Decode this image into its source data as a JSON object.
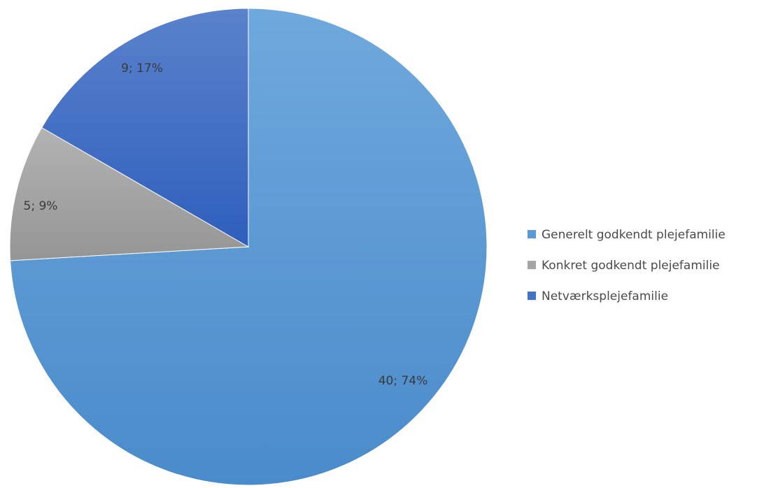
{
  "chart_data": {
    "type": "pie",
    "title": "",
    "categories": [
      "Generelt godkendt plejefamilie",
      "Konkret godkendt plejefamilie",
      "Netværksplejefamilie"
    ],
    "values": [
      40,
      5,
      9
    ],
    "percentages": [
      74,
      9,
      17
    ],
    "data_labels": [
      "40; 74%",
      "5; 9%",
      "9; 17%"
    ],
    "colors": [
      "#5b9bd5",
      "#a5a5a5",
      "#4472c4"
    ],
    "start_angle_deg": 0,
    "direction": "clockwise",
    "legend_position": "right"
  }
}
